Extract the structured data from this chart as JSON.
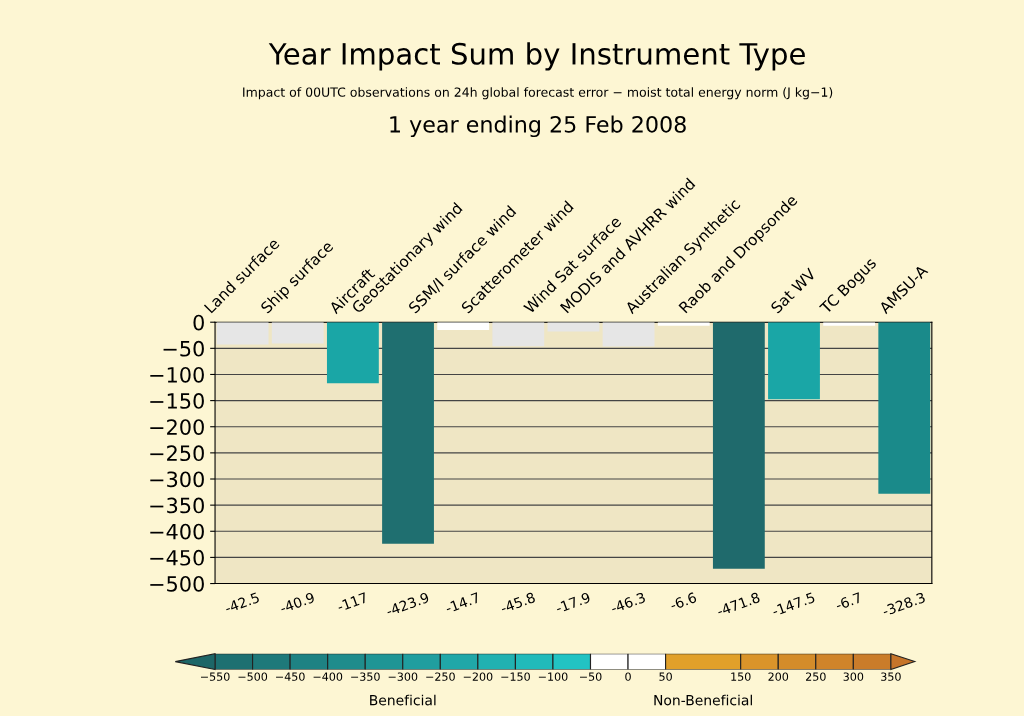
{
  "chart_data": {
    "type": "bar",
    "title": "Year Impact Sum by Instrument Type",
    "subtitle": "Impact of 00UTC observations on 24h global forecast error − moist total energy norm (J kg−1)",
    "annotations": [
      "1 year ending 25 Feb 2008",
      "Beneficial",
      "Non-Beneficial"
    ],
    "categories": [
      "Land surface",
      "Ship surface",
      "Aircraft",
      "Geostationary wind",
      "SSM/I surface wind",
      "Scatterometer wind",
      "Wind Sat surface",
      "MODIS and AVHRR wind",
      "Australian Synthetic",
      "Raob and Dropsonde",
      "Sat WV",
      "TC Bogus",
      "AMSU-A"
    ],
    "values": [
      -42.5,
      -40.9,
      -117,
      -423.9,
      -14.7,
      -45.8,
      -17.9,
      -46.3,
      -6.6,
      -471.8,
      -147.5,
      -6.7,
      -328.3
    ],
    "colors": [
      "#e6e6e6",
      "#e6e6e6",
      "#1aa6a6",
      "#1f6f70",
      "#ffffff",
      "#e6e6e6",
      "#e6e6e6",
      "#e6e6e6",
      "#ffffff",
      "#1f6a6c",
      "#1aa6a6",
      "#ffffff",
      "#1a8a8a"
    ],
    "data_labels": true,
    "ylim": [
      -500,
      0
    ],
    "yticks": [
      0,
      -50,
      -100,
      -150,
      -200,
      -250,
      -300,
      -350,
      -400,
      -450,
      -500
    ],
    "grid": "y",
    "clim": [
      -550,
      350
    ],
    "cticks": [
      -550,
      -500,
      -450,
      -400,
      -350,
      -300,
      -250,
      -200,
      -150,
      -100,
      -50,
      0,
      50,
      150,
      200,
      250,
      300,
      350
    ]
  }
}
